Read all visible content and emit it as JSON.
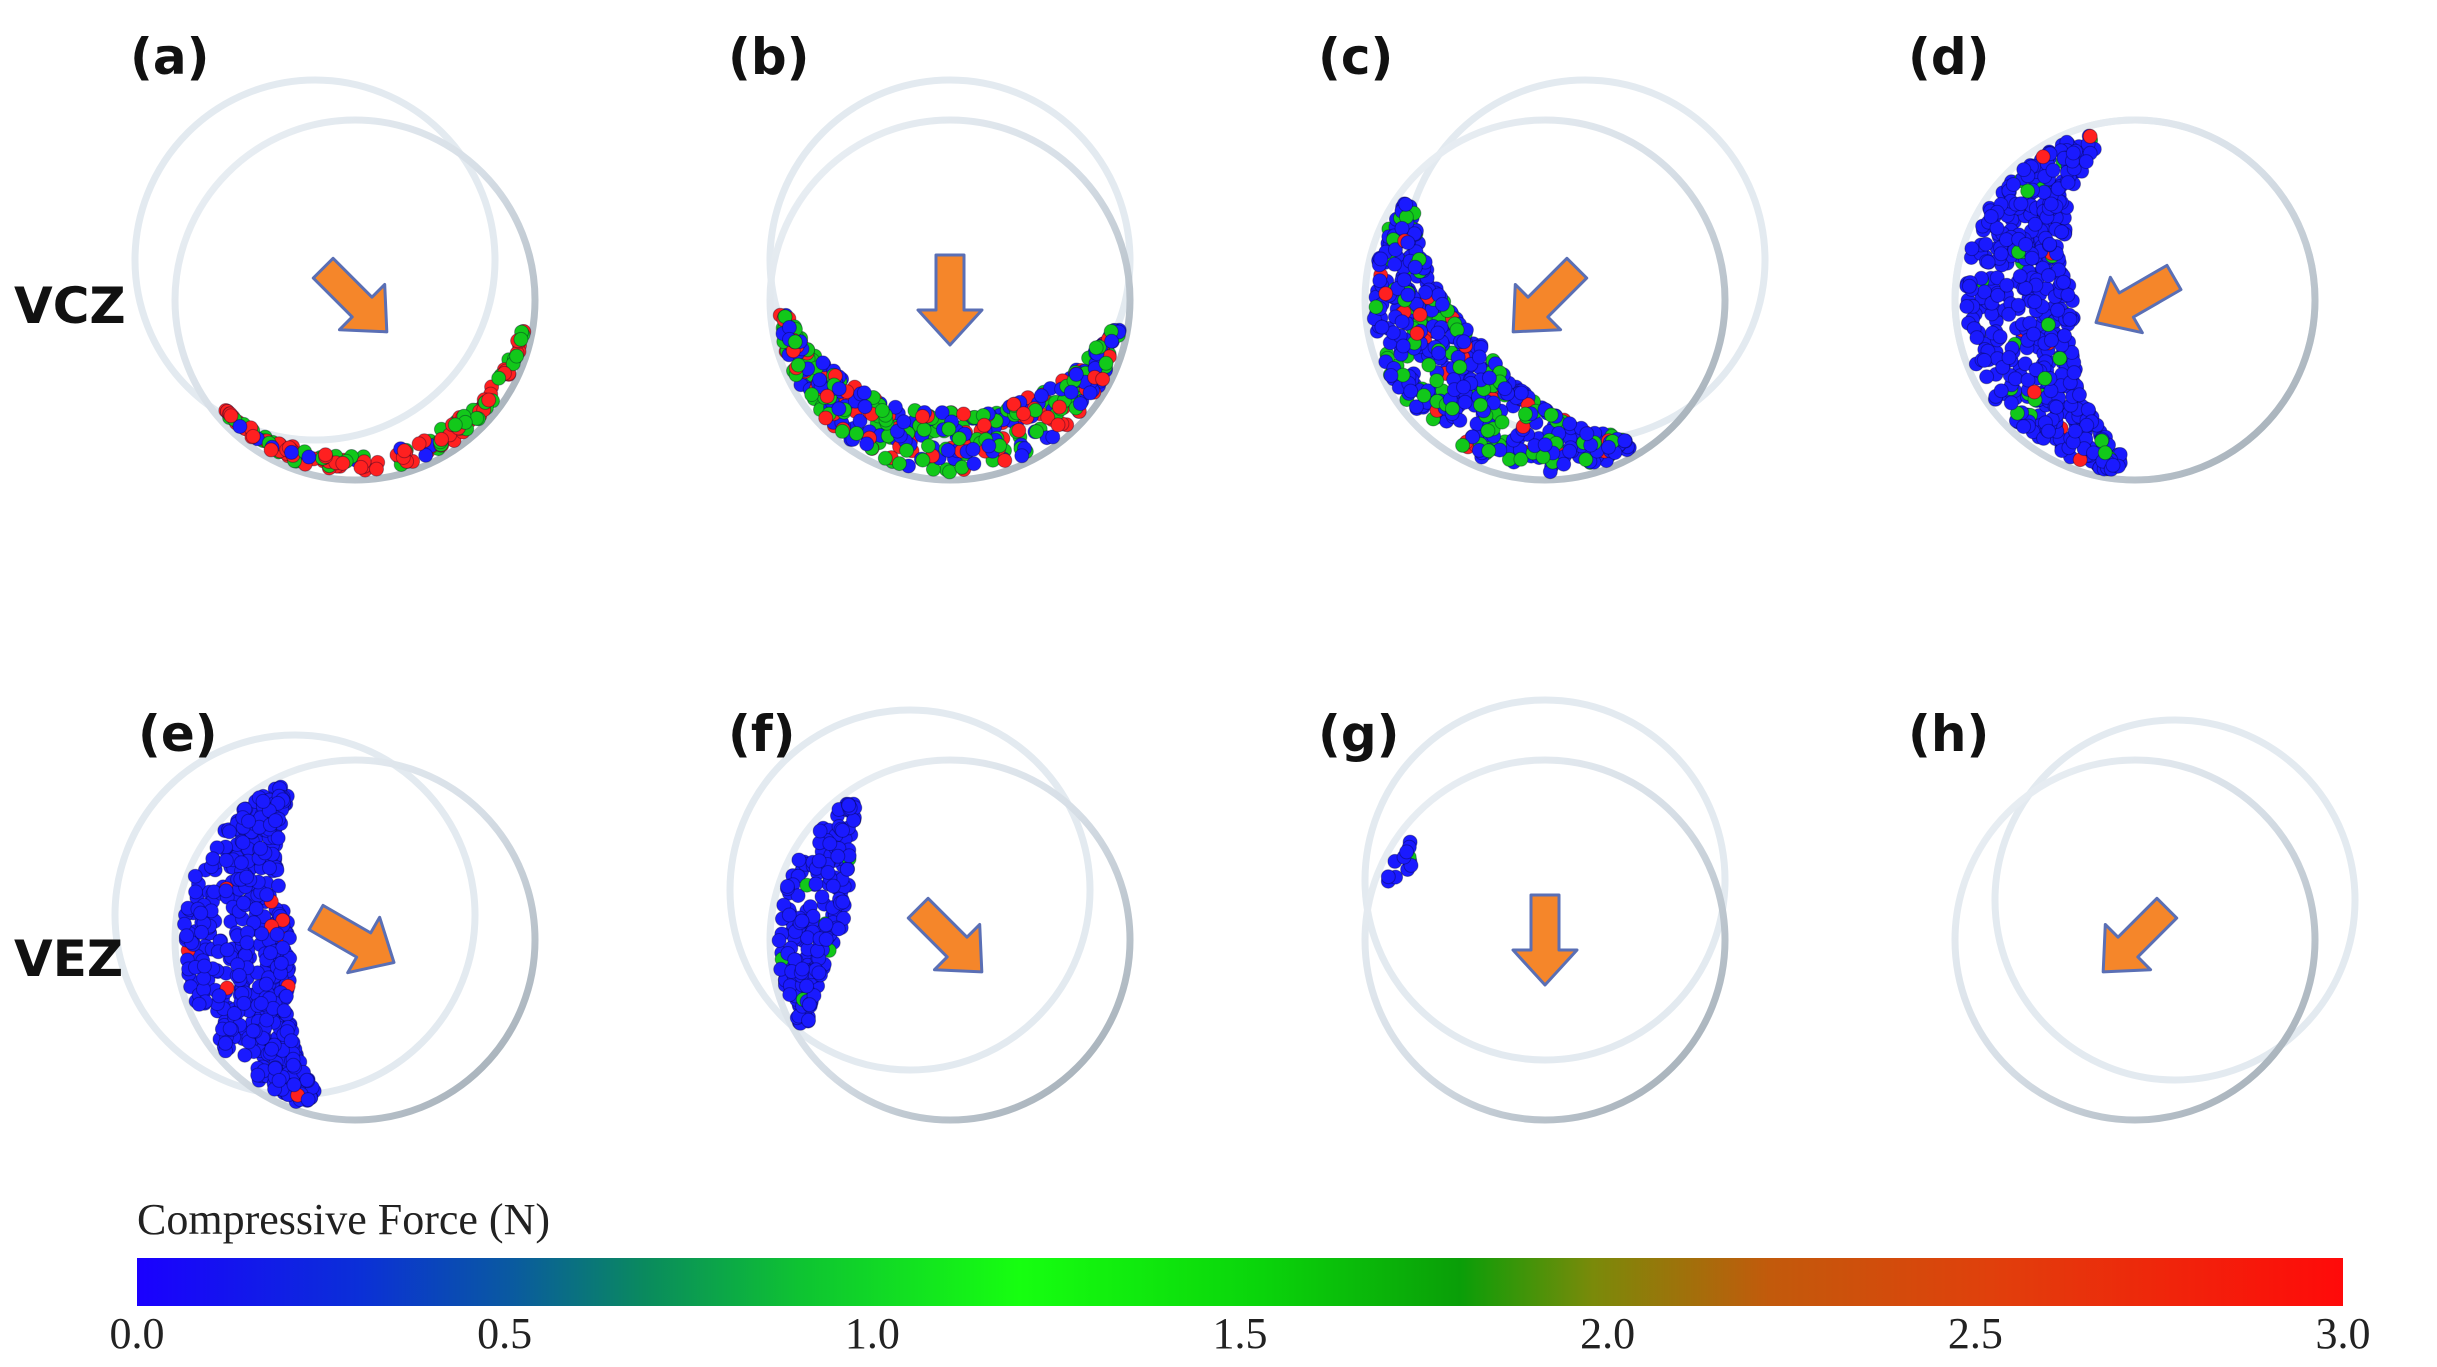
{
  "panels": [
    {
      "label": "(a)",
      "row": 0,
      "col": 0,
      "arrow_angle_deg": 45,
      "colour_pattern": "red-green band along lower-right rim"
    },
    {
      "label": "(b)",
      "row": 0,
      "col": 1,
      "arrow_angle_deg": 90,
      "colour_pattern": "blue-green-red band along bottom"
    },
    {
      "label": "(c)",
      "row": 0,
      "col": 2,
      "arrow_angle_deg": 135,
      "colour_pattern": "mostly blue crescent lower-left"
    },
    {
      "label": "(d)",
      "row": 0,
      "col": 3,
      "arrow_angle_deg": 150,
      "colour_pattern": "blue crescent left side"
    },
    {
      "label": "(e)",
      "row": 1,
      "col": 0,
      "arrow_angle_deg": 30,
      "colour_pattern": "blue crescent left side"
    },
    {
      "label": "(f)",
      "row": 1,
      "col": 1,
      "arrow_angle_deg": 45,
      "colour_pattern": "blue crescent upper-left"
    },
    {
      "label": "(g)",
      "row": 1,
      "col": 2,
      "arrow_angle_deg": 90,
      "colour_pattern": "few particles upper-left"
    },
    {
      "label": "(h)",
      "row": 1,
      "col": 3,
      "arrow_angle_deg": 135,
      "colour_pattern": "no particles"
    }
  ],
  "row_labels": [
    "VCZ",
    "VEZ"
  ],
  "colorbar": {
    "title": "Compressive Force (N)",
    "ticks": [
      "0.0",
      "0.5",
      "1.0",
      "1.5",
      "2.0",
      "2.5",
      "3.0"
    ],
    "min": 0.0,
    "max": 3.0
  },
  "colors": {
    "arrow_fill": "#f5862a",
    "arrow_stroke": "#5a6fb5",
    "ring": "#c9d3dc",
    "particle_low": "#1a1aff",
    "particle_mid": "#12c81a",
    "particle_high": "#ff2020"
  }
}
